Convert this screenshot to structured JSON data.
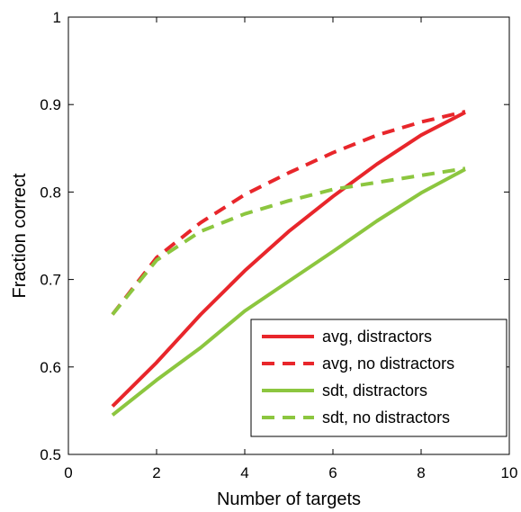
{
  "chart_data": {
    "type": "line",
    "title": "",
    "xlabel": "Number of targets",
    "ylabel": "Fraction correct",
    "xlim": [
      0,
      10
    ],
    "ylim": [
      0.5,
      1
    ],
    "xticks": [
      "0",
      "2",
      "4",
      "6",
      "8",
      "10"
    ],
    "yticks": [
      "0.5",
      "0.6",
      "0.7",
      "0.8",
      "0.9",
      "1"
    ],
    "grid": false,
    "legend_position": "bottom-right",
    "x": [
      1,
      2,
      3,
      4,
      5,
      6,
      7,
      8,
      9
    ],
    "series": [
      {
        "name": "avg, distractors",
        "color": "#e8262b",
        "style": "solid",
        "values": [
          0.555,
          0.605,
          0.66,
          0.71,
          0.755,
          0.795,
          0.832,
          0.865,
          0.891
        ]
      },
      {
        "name": "avg, no distractors",
        "color": "#e8262b",
        "style": "dashed",
        "values": [
          0.66,
          0.725,
          0.765,
          0.797,
          0.822,
          0.845,
          0.865,
          0.88,
          0.892
        ]
      },
      {
        "name": "sdt, distractors",
        "color": "#8cc63f",
        "style": "solid",
        "values": [
          0.545,
          0.585,
          0.622,
          0.664,
          0.698,
          0.732,
          0.767,
          0.799,
          0.826
        ]
      },
      {
        "name": "sdt, no distractors",
        "color": "#8cc63f",
        "style": "dashed",
        "values": [
          0.66,
          0.722,
          0.755,
          0.775,
          0.79,
          0.803,
          0.811,
          0.819,
          0.827
        ]
      }
    ]
  }
}
